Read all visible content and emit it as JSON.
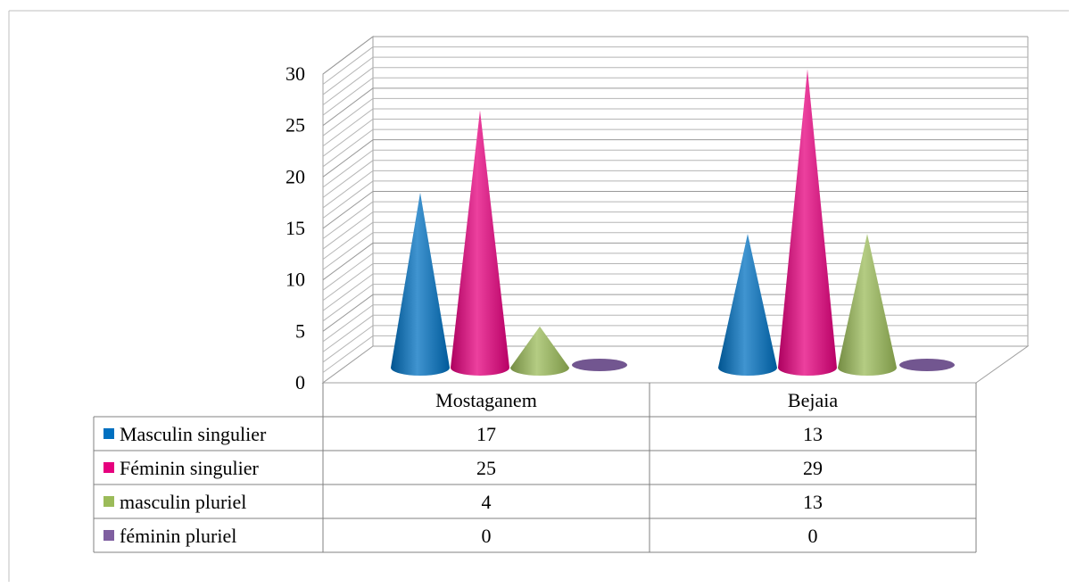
{
  "chart_data": {
    "type": "bar",
    "shape": "cone-3d",
    "categories": [
      "Mostaganem",
      "Bejaia"
    ],
    "series": [
      {
        "name": "Masculin singulier",
        "values": [
          17,
          13
        ],
        "color": "#0070C0"
      },
      {
        "name": "Féminin singulier",
        "values": [
          25,
          29
        ],
        "color": "#E6007E"
      },
      {
        "name": "masculin pluriel",
        "values": [
          4,
          13
        ],
        "color": "#9BBB59"
      },
      {
        "name": "féminin pluriel",
        "values": [
          0,
          0
        ],
        "color": "#7F5FA0"
      }
    ],
    "y_ticks": [
      "0",
      "5",
      "10",
      "15",
      "20",
      "25",
      "30"
    ],
    "ylim": [
      0,
      30
    ],
    "grid": true,
    "legend": "data-table-below"
  }
}
